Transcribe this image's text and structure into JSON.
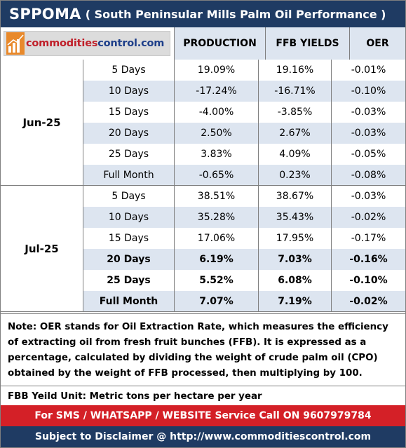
{
  "title": {
    "main": "SPPOMA",
    "subtitle": "( South Peninsular Mills Palm Oil Performance )"
  },
  "logo": {
    "text_a": "commodities",
    "text_b": "control.com",
    "icon": "bar-chart-logo-icon"
  },
  "headers": {
    "production": "PRODUCTION",
    "ffb_yields": "FFB YIELDS",
    "oer": "OER"
  },
  "groups": [
    {
      "month": "Jun-25",
      "rows": [
        {
          "period": "5 Days",
          "production": "19.09%",
          "ffb": "19.16%",
          "oer": "-0.01%",
          "bold": false
        },
        {
          "period": "10 Days",
          "production": "-17.24%",
          "ffb": "-16.71%",
          "oer": "-0.10%",
          "bold": false
        },
        {
          "period": "15 Days",
          "production": "-4.00%",
          "ffb": "-3.85%",
          "oer": "-0.03%",
          "bold": false
        },
        {
          "period": "20 Days",
          "production": "2.50%",
          "ffb": "2.67%",
          "oer": "-0.03%",
          "bold": false
        },
        {
          "period": "25 Days",
          "production": "3.83%",
          "ffb": "4.09%",
          "oer": "-0.05%",
          "bold": false
        },
        {
          "period": "Full Month",
          "production": "-0.65%",
          "ffb": "0.23%",
          "oer": "-0.08%",
          "bold": false
        }
      ]
    },
    {
      "month": "Jul-25",
      "rows": [
        {
          "period": "5 Days",
          "production": "38.51%",
          "ffb": "38.67%",
          "oer": "-0.03%",
          "bold": false
        },
        {
          "period": "10 Days",
          "production": "35.28%",
          "ffb": "35.43%",
          "oer": "-0.02%",
          "bold": false
        },
        {
          "period": "15 Days",
          "production": "17.06%",
          "ffb": "17.95%",
          "oer": "-0.17%",
          "bold": false
        },
        {
          "period": "20 Days",
          "production": "6.19%",
          "ffb": "7.03%",
          "oer": "-0.16%",
          "bold": true
        },
        {
          "period": "25 Days",
          "production": "5.52%",
          "ffb": "6.08%",
          "oer": "-0.10%",
          "bold": true
        },
        {
          "period": "Full Month",
          "production": "7.07%",
          "ffb": "7.19%",
          "oer": "-0.02%",
          "bold": true
        }
      ]
    }
  ],
  "note": "Note: OER stands for Oil Extraction Rate, which measures the efficiency of extracting oil from fresh fruit bunches (FFB). It is expressed as a percentage, calculated by dividing the weight of crude palm oil (CPO) obtained by the weight of FFB processed, then multiplying by 100.",
  "unit": "FBB Yeild Unit: Metric tons per hectare per year",
  "sms_bar": "For SMS / WHATSAPP / WEBSITE Service Call  ON  9607979784",
  "disclaimer": "Subject to Disclaimer @  http://www.commoditiescontrol.com",
  "colors": {
    "title_bg": "#1f3b63",
    "header_bg": "#dde5f0",
    "sms_bg": "#d42027",
    "logo_red": "#c0202a",
    "logo_blue": "#1e3f8a"
  }
}
